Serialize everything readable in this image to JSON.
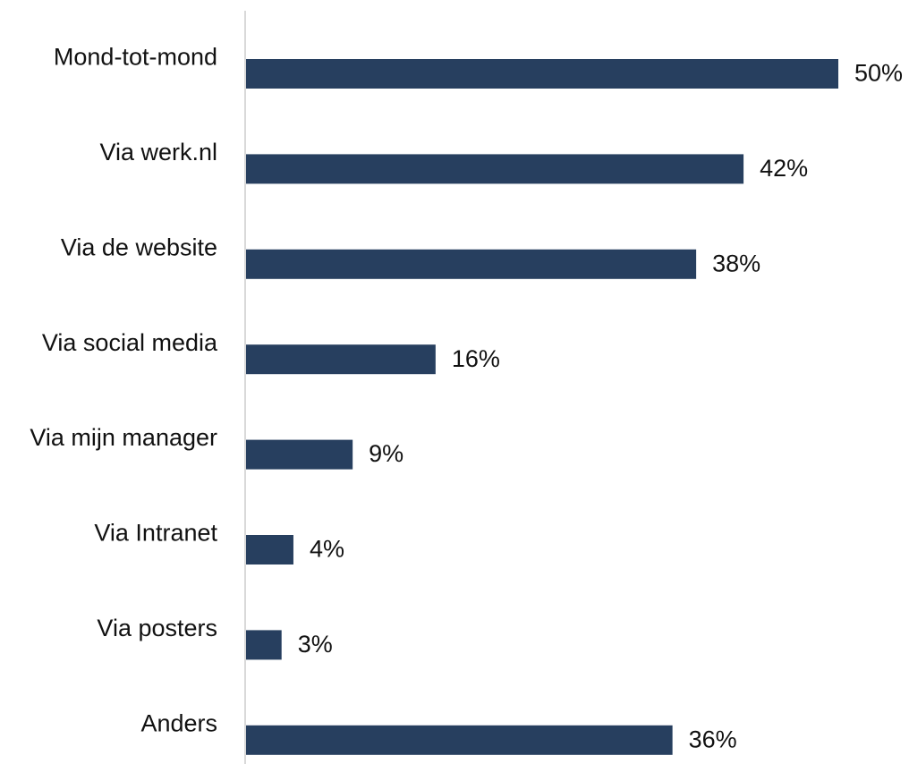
{
  "chart_data": {
    "type": "bar",
    "orientation": "horizontal",
    "categories": [
      "Mond-tot-mond",
      "Via werk.nl",
      "Via de website",
      "Via social media",
      "Via mijn manager",
      "Via Intranet",
      "Via posters",
      "Anders"
    ],
    "values": [
      50,
      42,
      38,
      16,
      9,
      4,
      3,
      36
    ],
    "value_labels": [
      "50%",
      "42%",
      "38%",
      "16%",
      "9%",
      "4%",
      "3%",
      "36%"
    ],
    "unit": "%",
    "title": "",
    "xlabel": "",
    "ylabel": "",
    "xlim": [
      0,
      50
    ],
    "grid": false,
    "legend": "none",
    "colors": {
      "bar": "#273f5f",
      "axis": "#d9d9d9",
      "text": "#111111"
    }
  }
}
